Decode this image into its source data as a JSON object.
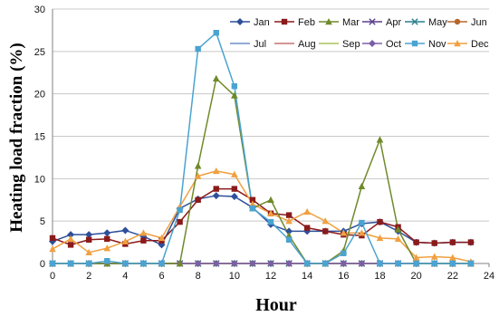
{
  "chart_data": {
    "type": "line",
    "title": "",
    "xlabel": "Hour",
    "ylabel": "Heating load  fraction (%)",
    "xlim": [
      0,
      24
    ],
    "ylim": [
      0,
      30
    ],
    "x_ticks": [
      "0",
      "2",
      "4",
      "6",
      "8",
      "10",
      "12",
      "14",
      "16",
      "18",
      "20",
      "22",
      "24"
    ],
    "y_ticks": [
      "0",
      "5",
      "10",
      "15",
      "20",
      "25",
      "30"
    ],
    "grid": "horizontal",
    "legend_position": "top-right",
    "x": [
      0,
      1,
      2,
      3,
      4,
      5,
      6,
      7,
      8,
      9,
      10,
      11,
      12,
      13,
      14,
      15,
      16,
      17,
      18,
      19,
      20,
      21,
      22,
      23
    ],
    "series": [
      {
        "name": "Jan",
        "color": "#2e4f9a",
        "marker": "diamond",
        "values": [
          2.6,
          3.4,
          3.4,
          3.6,
          3.9,
          3.2,
          2.2,
          6.5,
          7.6,
          8.0,
          7.9,
          6.6,
          4.6,
          3.8,
          3.8,
          3.8,
          3.8,
          4.7,
          4.9,
          3.8,
          2.5,
          2.4,
          2.5,
          2.5
        ]
      },
      {
        "name": "Feb",
        "color": "#8b1a1a",
        "marker": "square",
        "values": [
          3.0,
          2.2,
          2.8,
          2.9,
          2.3,
          2.7,
          2.7,
          4.9,
          7.5,
          8.8,
          8.8,
          7.5,
          5.9,
          5.7,
          4.2,
          3.8,
          3.4,
          3.3,
          4.9,
          4.3,
          2.5,
          2.4,
          2.5,
          2.5
        ]
      },
      {
        "name": "Mar",
        "color": "#6f8a2a",
        "marker": "triangle",
        "values": [
          0,
          0,
          0,
          0,
          0,
          0,
          0,
          0,
          11.5,
          21.8,
          19.8,
          6.5,
          7.5,
          3.3,
          0,
          0,
          1.5,
          9.1,
          14.6,
          4.0,
          0,
          0,
          0,
          0
        ]
      },
      {
        "name": "Apr",
        "color": "#5a3e8a",
        "marker": "x",
        "values": [
          0,
          0,
          0,
          0,
          0,
          0,
          0,
          0,
          0,
          0,
          0,
          0,
          0,
          0,
          0,
          0,
          0,
          0,
          0,
          0,
          0,
          0,
          0,
          0
        ]
      },
      {
        "name": "May",
        "color": "#2a7f8f",
        "marker": "x",
        "values": [
          0,
          0,
          0,
          0,
          0,
          0,
          0,
          0,
          0,
          0,
          0,
          0,
          0,
          0,
          0,
          0,
          0,
          0,
          0,
          0,
          0,
          0,
          0,
          0
        ]
      },
      {
        "name": "Jun",
        "color": "#b8652a",
        "marker": "circle",
        "values": [
          0,
          0,
          0,
          0,
          0,
          0,
          0,
          0,
          0,
          0,
          0,
          0,
          0,
          0,
          0,
          0,
          0,
          0,
          0,
          0,
          0,
          0,
          0,
          0
        ]
      },
      {
        "name": "Jul",
        "color": "#6d8fc9",
        "marker": "none",
        "values": [
          0,
          0,
          0,
          0,
          0,
          0,
          0,
          0,
          0,
          0,
          0,
          0,
          0,
          0,
          0,
          0,
          0,
          0,
          0,
          0,
          0,
          0,
          0,
          0
        ]
      },
      {
        "name": "Aug",
        "color": "#c97070",
        "marker": "none",
        "values": [
          0,
          0,
          0,
          0,
          0,
          0,
          0,
          0,
          0,
          0,
          0,
          0,
          0,
          0,
          0,
          0,
          0,
          0,
          0,
          0,
          0,
          0,
          0,
          0
        ]
      },
      {
        "name": "Sep",
        "color": "#a8c35a",
        "marker": "none",
        "values": [
          0,
          0,
          0,
          0,
          0,
          0,
          0,
          0,
          0,
          0,
          0,
          0,
          0,
          0,
          0,
          0,
          0,
          0,
          0,
          0,
          0,
          0,
          0,
          0
        ]
      },
      {
        "name": "Oct",
        "color": "#7b5ea8",
        "marker": "diamond",
        "values": [
          0,
          0,
          0,
          0,
          0,
          0,
          0,
          0,
          0,
          0,
          0,
          0,
          0,
          0,
          0,
          0,
          0,
          0,
          0,
          0,
          0,
          0,
          0,
          0
        ]
      },
      {
        "name": "Nov",
        "color": "#4aa3d0",
        "marker": "square",
        "values": [
          0,
          0,
          0,
          0.3,
          0,
          0,
          0,
          6.3,
          25.3,
          27.2,
          20.9,
          6.5,
          4.9,
          2.8,
          0,
          0,
          1.2,
          4.8,
          0,
          0,
          0,
          0,
          0,
          0
        ]
      },
      {
        "name": "Dec",
        "color": "#f0a040",
        "marker": "triangle",
        "values": [
          1.7,
          2.9,
          1.3,
          1.8,
          2.6,
          3.6,
          3.0,
          6.7,
          10.3,
          10.9,
          10.5,
          7.0,
          5.9,
          5.0,
          6.1,
          5.0,
          3.6,
          3.6,
          3.0,
          2.9,
          0.7,
          0.8,
          0.7,
          0.2
        ]
      }
    ]
  }
}
